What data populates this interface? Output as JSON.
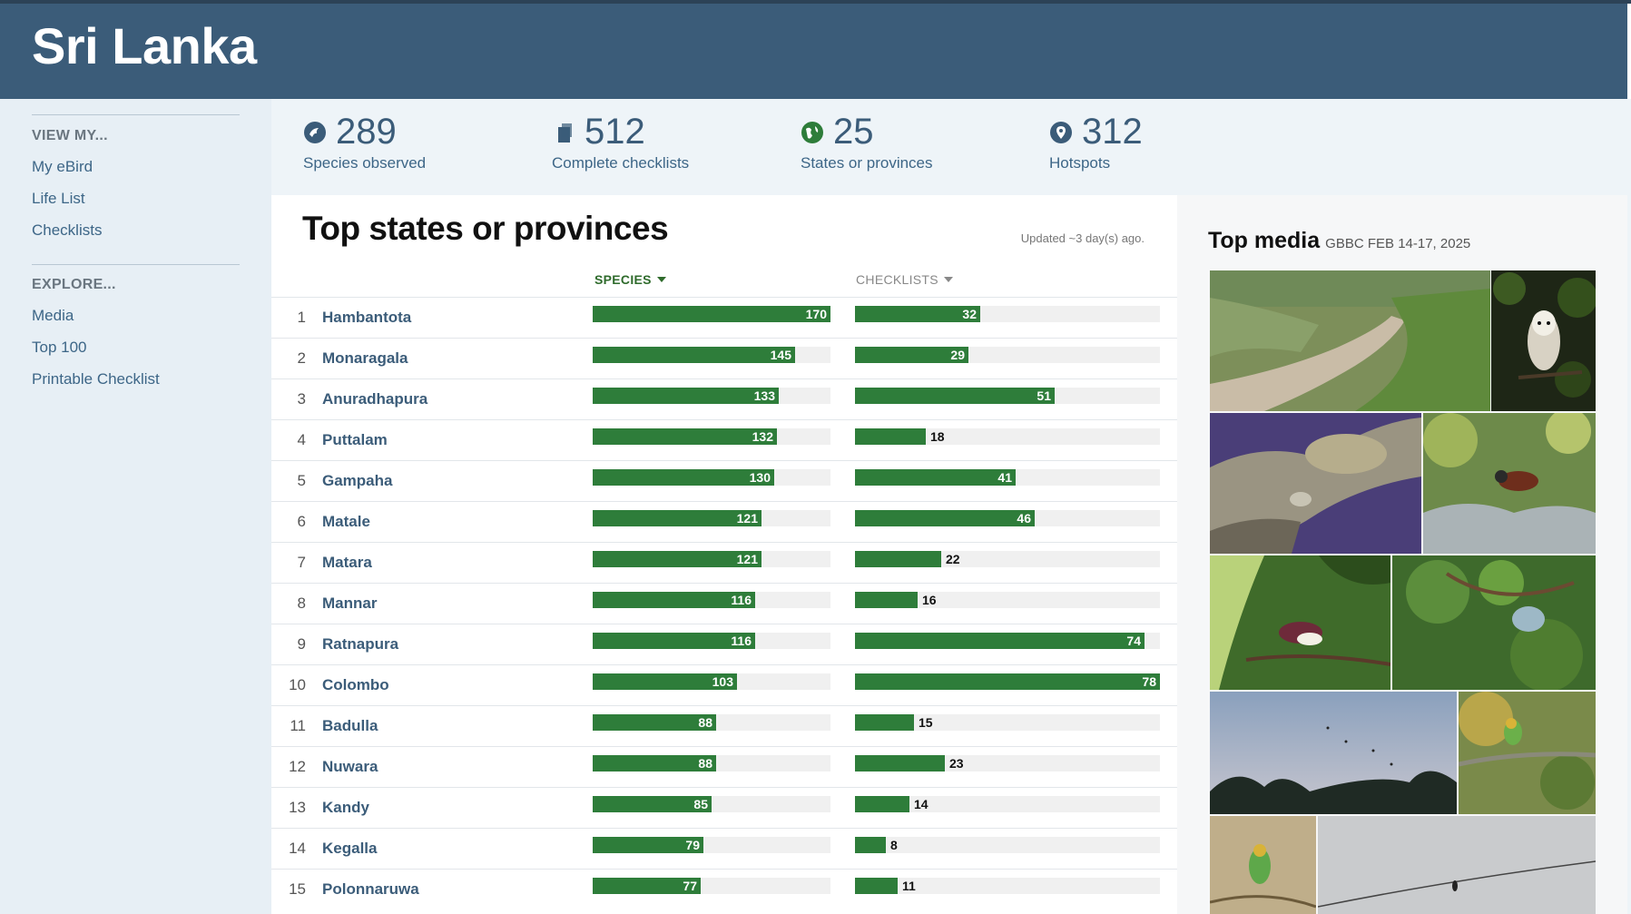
{
  "header": {
    "title": "Sri Lanka"
  },
  "sidebar": {
    "view_heading": "VIEW MY...",
    "view_links": [
      "My eBird",
      "Life List",
      "Checklists"
    ],
    "explore_heading": "EXPLORE...",
    "explore_links": [
      "Media",
      "Top 100",
      "Printable Checklist"
    ]
  },
  "stats": [
    {
      "value": "289",
      "label": "Species observed",
      "icon": "species-icon"
    },
    {
      "value": "512",
      "label": "Complete checklists",
      "icon": "checklist-icon"
    },
    {
      "value": "25",
      "label": "States or provinces",
      "icon": "globe-icon"
    },
    {
      "value": "312",
      "label": "Hotspots",
      "icon": "map-pin-icon"
    }
  ],
  "top_regions": {
    "title": "Top states or provinces",
    "updated": "Updated ~3 day(s) ago.",
    "species_header": "SPECIES",
    "checklists_header": "CHECKLISTS",
    "species_max": 170,
    "checklists_max": 78,
    "rows": [
      {
        "rank": "1",
        "name": "Hambantota",
        "species": 170,
        "checklists": 32
      },
      {
        "rank": "2",
        "name": "Monaragala",
        "species": 145,
        "checklists": 29
      },
      {
        "rank": "3",
        "name": "Anuradhapura",
        "species": 133,
        "checklists": 51
      },
      {
        "rank": "4",
        "name": "Puttalam",
        "species": 132,
        "checklists": 18
      },
      {
        "rank": "5",
        "name": "Gampaha",
        "species": 130,
        "checklists": 41
      },
      {
        "rank": "6",
        "name": "Matale",
        "species": 121,
        "checklists": 46
      },
      {
        "rank": "7",
        "name": "Matara",
        "species": 121,
        "checklists": 22
      },
      {
        "rank": "8",
        "name": "Mannar",
        "species": 116,
        "checklists": 16
      },
      {
        "rank": "9",
        "name": "Ratnapura",
        "species": 116,
        "checklists": 74
      },
      {
        "rank": "10",
        "name": "Colombo",
        "species": 103,
        "checklists": 78
      },
      {
        "rank": "11",
        "name": "Badulla",
        "species": 88,
        "checklists": 15
      },
      {
        "rank": "12",
        "name": "Nuwara",
        "species": 88,
        "checklists": 23
      },
      {
        "rank": "13",
        "name": "Kandy",
        "species": 85,
        "checklists": 14
      },
      {
        "rank": "14",
        "name": "Kegalla",
        "species": 79,
        "checklists": 8
      },
      {
        "rank": "15",
        "name": "Polonnaruwa",
        "species": 77,
        "checklists": 11
      }
    ]
  },
  "top_media": {
    "title": "Top media",
    "subtitle": "GBBC FEB 14-17, 2025"
  },
  "colors": {
    "header_bg": "#3b5c79",
    "bar_green": "#2e7d3a",
    "link_blue": "#3d6687"
  }
}
